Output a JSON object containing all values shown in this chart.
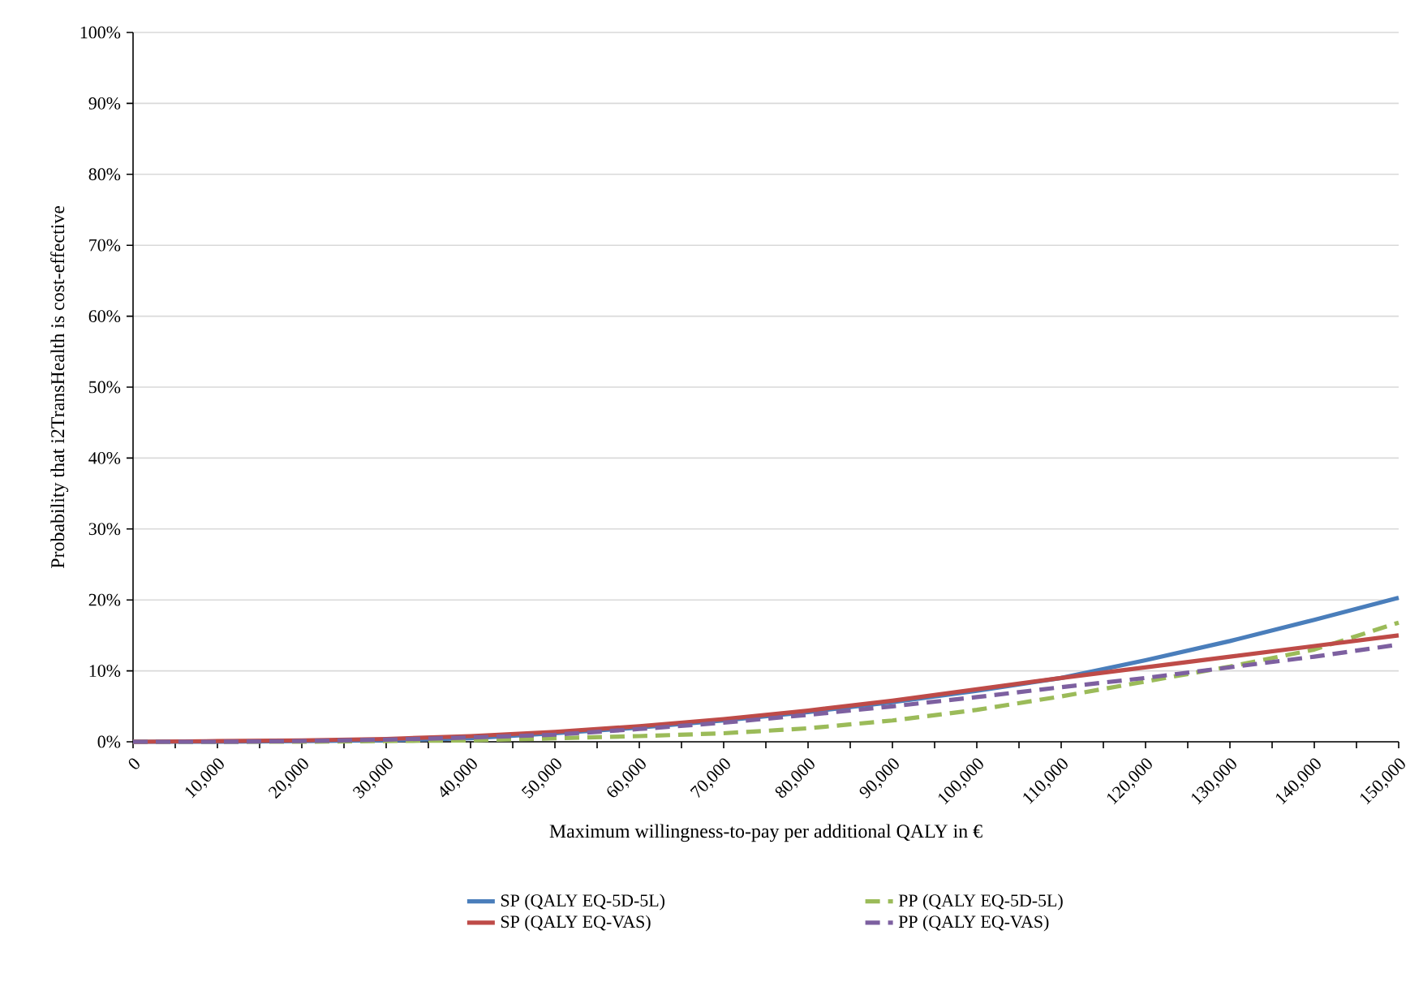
{
  "chart_data": {
    "type": "line",
    "xlabel": "Maximum willingness-to-pay per additional QALY in €",
    "ylabel": "Probability that i2TransHealth is cost-effective",
    "x": [
      0,
      10000,
      20000,
      30000,
      40000,
      50000,
      60000,
      70000,
      80000,
      90000,
      100000,
      110000,
      120000,
      130000,
      140000,
      150000
    ],
    "series": [
      {
        "name": "SP (QALY EQ-5D-5L)",
        "color": "#4a7ebb",
        "line_style": "solid",
        "values": [
          0,
          0,
          0.1,
          0.2,
          0.5,
          1.2,
          2.0,
          3.0,
          4.2,
          5.6,
          7.2,
          9.0,
          11.5,
          14.2,
          17.2,
          20.3
        ]
      },
      {
        "name": "PP (QALY EQ-5D-5L)",
        "color": "#9bbb59",
        "line_style": "dashed",
        "values": [
          0,
          0,
          0,
          0.1,
          0.2,
          0.5,
          0.8,
          1.2,
          1.9,
          3.0,
          4.5,
          6.4,
          8.5,
          10.6,
          13.0,
          16.8
        ]
      },
      {
        "name": "SP (QALY EQ-VAS)",
        "color": "#be4b48",
        "line_style": "solid",
        "values": [
          0,
          0.1,
          0.2,
          0.4,
          0.8,
          1.4,
          2.2,
          3.2,
          4.4,
          5.8,
          7.4,
          9.0,
          10.5,
          12.0,
          13.5,
          15.0
        ]
      },
      {
        "name": "PP (QALY EQ-VAS)",
        "color": "#7d60a0",
        "line_style": "dashed",
        "values": [
          0,
          0,
          0.1,
          0.3,
          0.6,
          1.0,
          1.8,
          2.7,
          3.8,
          5.0,
          6.3,
          7.7,
          9.0,
          10.5,
          12.0,
          13.7
        ]
      }
    ],
    "xlim": [
      0,
      150000
    ],
    "ylim": [
      0,
      100
    ],
    "xticks": [
      0,
      {
        "value": 5000,
        "label": null
      },
      {
        "value": 10000,
        "label": "10,000"
      },
      {
        "value": 15000,
        "label": null
      },
      {
        "value": 20000,
        "label": "20,000"
      },
      {
        "value": 25000,
        "label": null
      },
      {
        "value": 30000,
        "label": "30,000"
      },
      {
        "value": 35000,
        "label": null
      },
      {
        "value": 40000,
        "label": "40,000"
      },
      {
        "value": 45000,
        "label": null
      },
      {
        "value": 50000,
        "label": "50,000"
      },
      {
        "value": 55000,
        "label": null
      },
      {
        "value": 60000,
        "label": "60,000"
      },
      {
        "value": 65000,
        "label": null
      },
      {
        "value": 70000,
        "label": "70,000"
      },
      {
        "value": 75000,
        "label": null
      },
      {
        "value": 80000,
        "label": "80,000"
      },
      {
        "value": 85000,
        "label": null
      },
      {
        "value": 90000,
        "label": "90,000"
      },
      {
        "value": 95000,
        "label": null
      },
      {
        "value": 100000,
        "label": "100,000"
      },
      {
        "value": 105000,
        "label": null
      },
      {
        "value": 110000,
        "label": "110,000"
      },
      {
        "value": 115000,
        "label": null
      },
      {
        "value": 120000,
        "label": "120,000"
      },
      {
        "value": 125000,
        "label": null
      },
      {
        "value": 130000,
        "label": "130,000"
      },
      {
        "value": 135000,
        "label": null
      },
      {
        "value": 140000,
        "label": "140,000"
      },
      {
        "value": 145000,
        "label": null
      },
      {
        "value": 150000,
        "label": "150,000"
      }
    ],
    "yticks": [
      {
        "value": 0,
        "label": "0%"
      },
      {
        "value": 10,
        "label": "10%"
      },
      {
        "value": 20,
        "label": "20%"
      },
      {
        "value": 30,
        "label": "30%"
      },
      {
        "value": 40,
        "label": "40%"
      },
      {
        "value": 50,
        "label": "50%"
      },
      {
        "value": 60,
        "label": "60%"
      },
      {
        "value": 70,
        "label": "70%"
      },
      {
        "value": 80,
        "label": "80%"
      },
      {
        "value": 90,
        "label": "90%"
      },
      {
        "value": 100,
        "label": "100%"
      }
    ],
    "grid": "y",
    "legend": "bottom",
    "marker": "none"
  }
}
